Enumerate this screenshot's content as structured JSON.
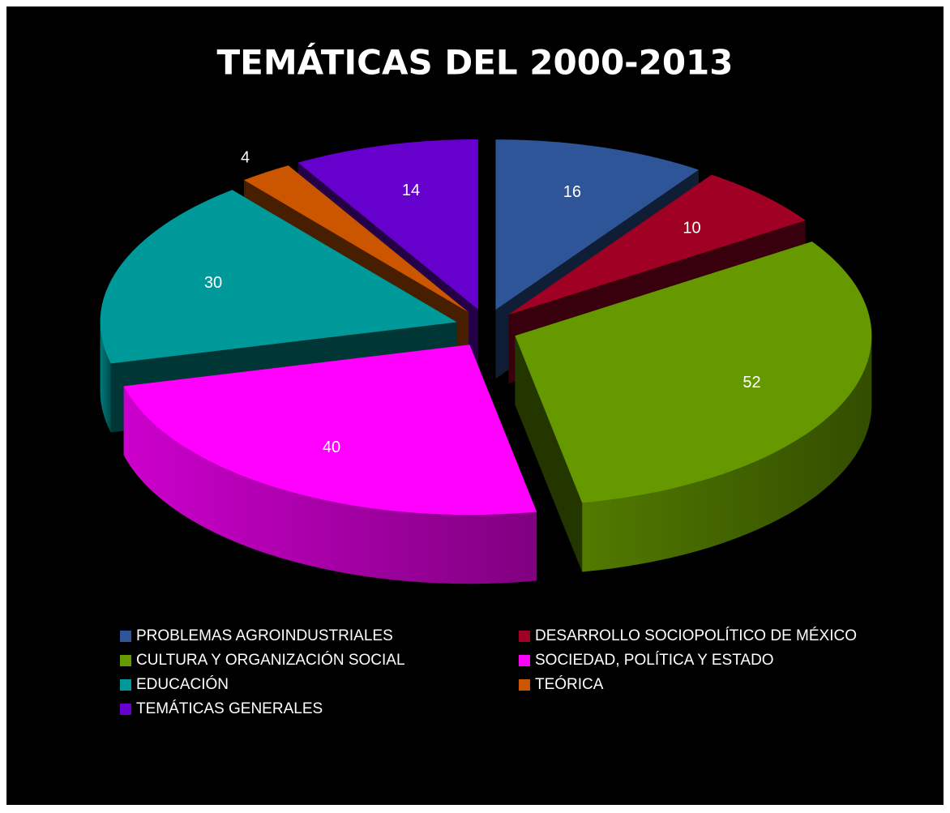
{
  "chart_data": {
    "type": "pie",
    "title": "TEMÁTICAS DEL 2000-2013",
    "categories": [
      "PROBLEMAS AGROINDUSTRIALES",
      "DESARROLLO SOCIOPOLÍTICO DE MÉXICO",
      "CULTURA Y ORGANIZACIÓN SOCIAL",
      "SOCIEDAD, POLÍTICA Y ESTADO",
      "EDUCACIÓN",
      "TEÓRICA",
      "TEMÁTICAS GENERALES"
    ],
    "values": [
      16,
      10,
      52,
      40,
      30,
      4,
      14
    ],
    "colors": [
      "#2e5597",
      "#a00024",
      "#669900",
      "#ff00ff",
      "#009999",
      "#cc5500",
      "#6600cc"
    ],
    "legend": "bottom"
  }
}
